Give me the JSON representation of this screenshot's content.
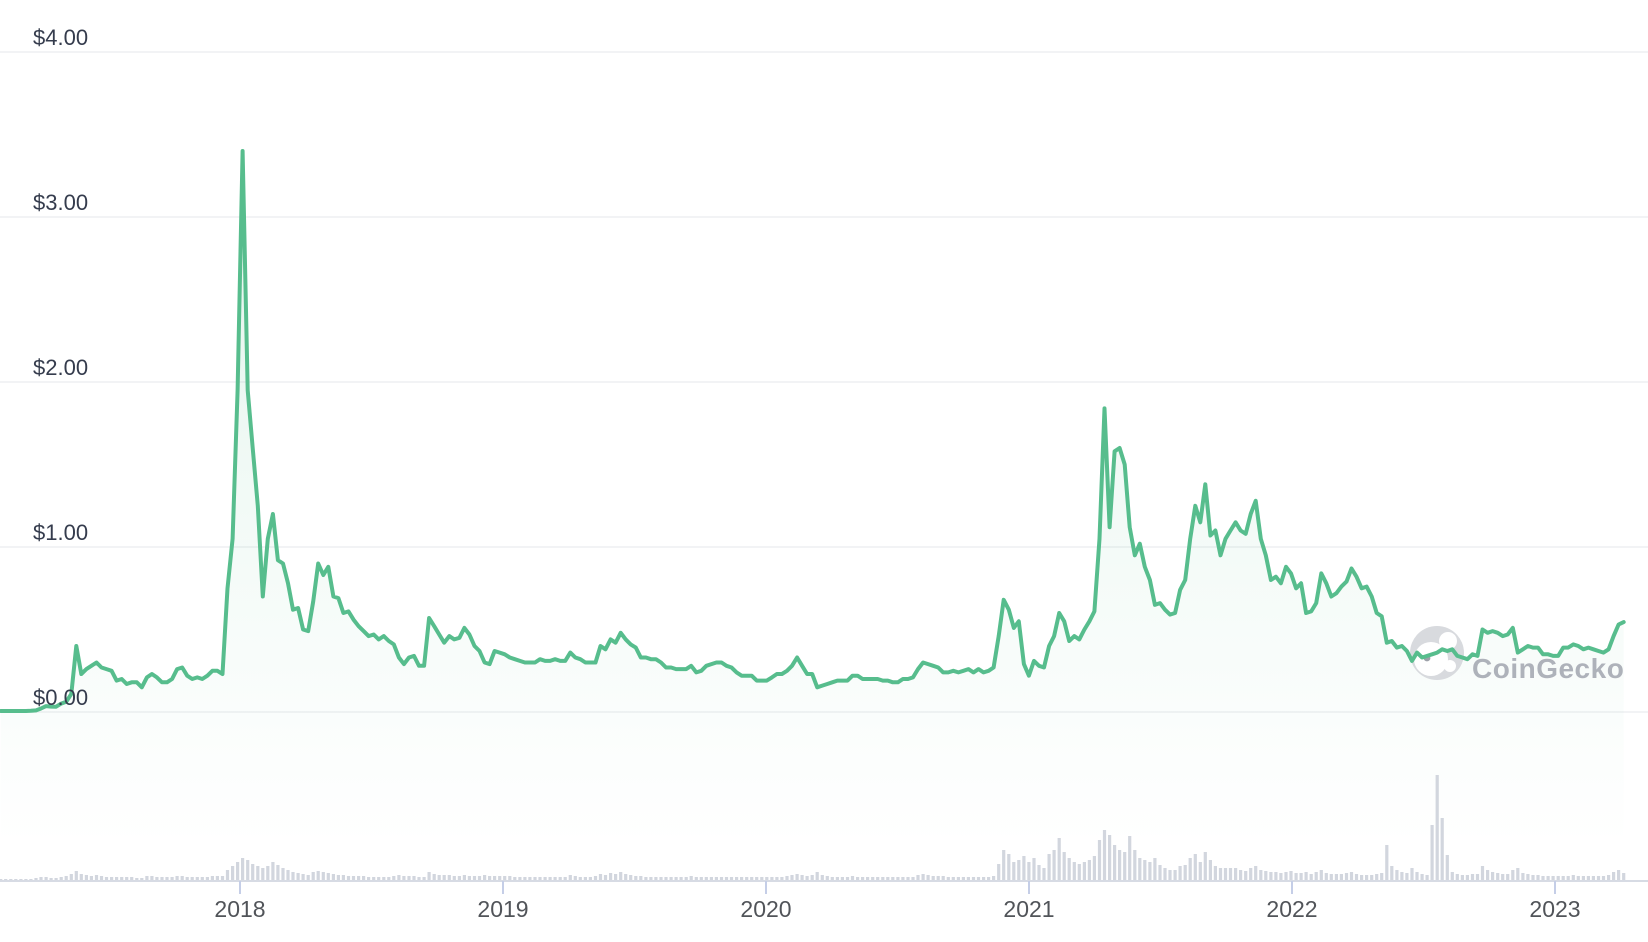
{
  "watermark": {
    "text": "CoinGecko"
  },
  "chart_data": {
    "type": "line",
    "title": "",
    "currency": "USD",
    "y_axis": {
      "tick_labels": [
        "$0.00",
        "$1.00",
        "$2.00",
        "$3.00",
        "$4.00"
      ],
      "tick_values": [
        0,
        1,
        2,
        3,
        4
      ],
      "ylim": [
        0,
        4.31
      ],
      "grid": true
    },
    "x_axis": {
      "tick_labels": [
        "2018",
        "2019",
        "2020",
        "2021",
        "2022",
        "2023"
      ],
      "tick_years": [
        2018,
        2019,
        2020,
        2021,
        2022,
        2023
      ],
      "range_years": [
        2017.09,
        2023.28
      ]
    },
    "legend": {
      "visible": false
    },
    "accent_color": "#57bd8d",
    "volume_color": "#d2d6de",
    "series": [
      {
        "name": "price",
        "interval": "weekly",
        "start": "2017-02-04",
        "values": [
          0.006,
          0.006,
          0.006,
          0.006,
          0.006,
          0.006,
          0.007,
          0.01,
          0.021,
          0.036,
          0.033,
          0.032,
          0.051,
          0.062,
          0.11,
          0.4,
          0.23,
          0.26,
          0.28,
          0.3,
          0.27,
          0.26,
          0.25,
          0.19,
          0.2,
          0.17,
          0.18,
          0.18,
          0.15,
          0.21,
          0.23,
          0.21,
          0.18,
          0.18,
          0.2,
          0.26,
          0.27,
          0.22,
          0.2,
          0.21,
          0.2,
          0.22,
          0.25,
          0.25,
          0.23,
          0.75,
          1.05,
          1.95,
          3.4,
          1.95,
          1.6,
          1.25,
          0.7,
          1.05,
          1.2,
          0.92,
          0.9,
          0.78,
          0.62,
          0.63,
          0.5,
          0.49,
          0.67,
          0.9,
          0.83,
          0.88,
          0.7,
          0.69,
          0.6,
          0.61,
          0.56,
          0.52,
          0.49,
          0.46,
          0.47,
          0.44,
          0.46,
          0.43,
          0.41,
          0.33,
          0.29,
          0.33,
          0.34,
          0.28,
          0.28,
          0.57,
          0.52,
          0.47,
          0.42,
          0.46,
          0.44,
          0.45,
          0.51,
          0.47,
          0.4,
          0.37,
          0.3,
          0.29,
          0.37,
          0.36,
          0.35,
          0.33,
          0.32,
          0.31,
          0.3,
          0.3,
          0.3,
          0.32,
          0.31,
          0.31,
          0.32,
          0.31,
          0.31,
          0.36,
          0.33,
          0.32,
          0.3,
          0.3,
          0.3,
          0.4,
          0.38,
          0.44,
          0.42,
          0.48,
          0.44,
          0.41,
          0.39,
          0.33,
          0.33,
          0.32,
          0.32,
          0.3,
          0.27,
          0.27,
          0.26,
          0.26,
          0.26,
          0.28,
          0.24,
          0.25,
          0.28,
          0.29,
          0.3,
          0.3,
          0.28,
          0.27,
          0.24,
          0.22,
          0.22,
          0.22,
          0.19,
          0.19,
          0.19,
          0.21,
          0.23,
          0.23,
          0.25,
          0.28,
          0.33,
          0.28,
          0.23,
          0.23,
          0.15,
          0.16,
          0.17,
          0.18,
          0.19,
          0.19,
          0.19,
          0.22,
          0.22,
          0.2,
          0.2,
          0.2,
          0.2,
          0.19,
          0.19,
          0.18,
          0.18,
          0.2,
          0.2,
          0.21,
          0.26,
          0.3,
          0.29,
          0.28,
          0.27,
          0.24,
          0.24,
          0.25,
          0.24,
          0.25,
          0.26,
          0.24,
          0.26,
          0.24,
          0.25,
          0.27,
          0.46,
          0.68,
          0.62,
          0.51,
          0.55,
          0.29,
          0.22,
          0.31,
          0.28,
          0.27,
          0.4,
          0.46,
          0.6,
          0.55,
          0.43,
          0.46,
          0.44,
          0.5,
          0.55,
          0.61,
          1.05,
          1.84,
          1.12,
          1.58,
          1.6,
          1.5,
          1.12,
          0.95,
          1.02,
          0.88,
          0.8,
          0.65,
          0.66,
          0.62,
          0.59,
          0.6,
          0.74,
          0.8,
          1.05,
          1.25,
          1.15,
          1.38,
          1.07,
          1.1,
          0.95,
          1.05,
          1.1,
          1.15,
          1.1,
          1.08,
          1.2,
          1.28,
          1.05,
          0.95,
          0.8,
          0.82,
          0.78,
          0.88,
          0.84,
          0.75,
          0.78,
          0.6,
          0.61,
          0.66,
          0.84,
          0.78,
          0.7,
          0.72,
          0.76,
          0.79,
          0.87,
          0.82,
          0.75,
          0.76,
          0.7,
          0.6,
          0.58,
          0.42,
          0.43,
          0.39,
          0.4,
          0.37,
          0.31,
          0.36,
          0.33,
          0.34,
          0.35,
          0.36,
          0.38,
          0.37,
          0.38,
          0.34,
          0.33,
          0.32,
          0.35,
          0.34,
          0.5,
          0.48,
          0.49,
          0.48,
          0.46,
          0.47,
          0.51,
          0.36,
          0.38,
          0.4,
          0.39,
          0.39,
          0.35,
          0.35,
          0.34,
          0.34,
          0.39,
          0.39,
          0.41,
          0.4,
          0.38,
          0.39,
          0.38,
          0.37,
          0.36,
          0.38,
          0.46,
          0.53,
          0.545
        ]
      },
      {
        "name": "volume",
        "interval": "weekly",
        "start": "2017-02-04",
        "unit": "relative-px",
        "values": [
          1,
          1,
          1,
          1,
          1,
          1,
          1,
          2,
          3,
          3,
          2,
          2,
          3,
          4,
          6,
          9,
          6,
          5,
          4,
          5,
          4,
          3,
          3,
          3,
          3,
          3,
          3,
          2,
          2,
          4,
          4,
          3,
          3,
          3,
          3,
          4,
          4,
          3,
          3,
          3,
          3,
          3,
          4,
          4,
          4,
          10,
          14,
          18,
          22,
          20,
          16,
          14,
          12,
          14,
          18,
          15,
          12,
          10,
          8,
          7,
          6,
          5,
          8,
          9,
          8,
          7,
          6,
          5,
          5,
          4,
          4,
          4,
          4,
          3,
          3,
          3,
          3,
          3,
          4,
          5,
          4,
          4,
          4,
          3,
          3,
          8,
          6,
          5,
          5,
          5,
          4,
          4,
          5,
          4,
          4,
          4,
          5,
          4,
          4,
          4,
          4,
          4,
          3,
          3,
          3,
          3,
          3,
          3,
          3,
          3,
          3,
          3,
          3,
          5,
          4,
          3,
          3,
          3,
          4,
          6,
          5,
          7,
          6,
          8,
          6,
          5,
          4,
          4,
          3,
          3,
          3,
          3,
          3,
          3,
          3,
          3,
          3,
          4,
          3,
          3,
          3,
          3,
          3,
          3,
          3,
          3,
          3,
          3,
          3,
          3,
          3,
          3,
          3,
          3,
          3,
          3,
          4,
          5,
          6,
          5,
          4,
          5,
          8,
          5,
          4,
          3,
          3,
          3,
          3,
          4,
          3,
          3,
          3,
          3,
          3,
          3,
          3,
          3,
          3,
          3,
          3,
          3,
          5,
          6,
          5,
          4,
          4,
          4,
          3,
          3,
          3,
          3,
          3,
          3,
          3,
          3,
          3,
          4,
          16,
          30,
          26,
          18,
          20,
          24,
          18,
          22,
          15,
          12,
          26,
          30,
          42,
          28,
          22,
          18,
          16,
          18,
          20,
          24,
          40,
          50,
          45,
          35,
          30,
          28,
          44,
          30,
          22,
          20,
          18,
          22,
          15,
          12,
          10,
          10,
          14,
          15,
          22,
          26,
          18,
          28,
          20,
          14,
          12,
          12,
          12,
          12,
          10,
          9,
          12,
          14,
          10,
          9,
          8,
          8,
          7,
          8,
          9,
          7,
          7,
          8,
          6,
          8,
          10,
          7,
          6,
          6,
          6,
          7,
          8,
          6,
          5,
          5,
          5,
          6,
          7,
          35,
          14,
          10,
          8,
          7,
          12,
          8,
          6,
          5,
          55,
          105,
          62,
          25,
          8,
          6,
          5,
          5,
          6,
          6,
          14,
          10,
          8,
          7,
          6,
          6,
          10,
          12,
          7,
          6,
          5,
          5,
          4,
          4,
          4,
          4,
          4,
          4,
          5,
          4,
          4,
          4,
          4,
          4,
          4,
          5,
          8,
          10,
          7
        ]
      }
    ]
  }
}
